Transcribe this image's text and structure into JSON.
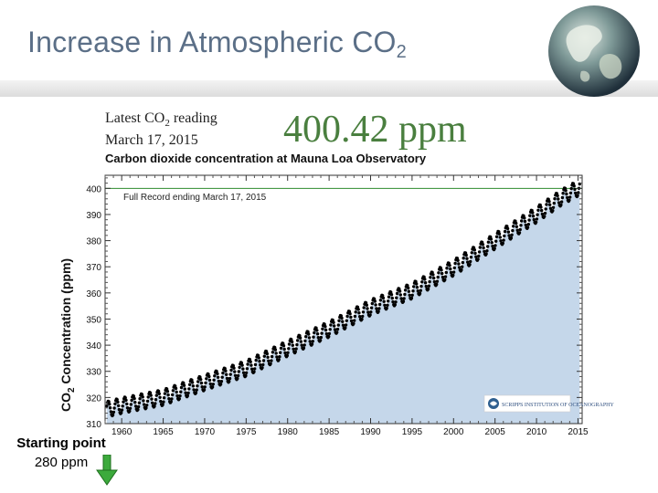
{
  "slide": {
    "title_main": "Increase in Atmospheric CO",
    "title_sub": "2",
    "start_label_line1": "Starting point",
    "start_label_line2": "280 ppm"
  },
  "chart_header": {
    "latest_prefix": "Latest CO",
    "latest_sub": "2",
    "latest_suffix": " reading",
    "date": "March 17, 2015",
    "big_value": "400.42 ppm",
    "title": "Carbon dioxide concentration at Mauna Loa Observatory",
    "record_note": "Full Record ending March 17, 2015",
    "ylabel_main": "CO",
    "ylabel_sub": "2",
    "ylabel_rest": " Concentration (ppm)",
    "logo_text": "SCRIPPS INSTITUTION OF OCEANOGRAPHY"
  },
  "colors": {
    "title": "#5b6f87",
    "big_value": "#4a7f3f",
    "fill": "#c5d7ea",
    "points": "#000000",
    "reference_line": "#2e8b2e",
    "arrow": "#3caa3c"
  },
  "icons": {
    "globe": "globe-icon",
    "arrow": "down-arrow-icon",
    "logo": "scripps-logo-icon"
  },
  "chart_data": {
    "type": "scatter",
    "title": "Carbon dioxide concentration at Mauna Loa Observatory",
    "xlabel": "",
    "ylabel": "CO2 Concentration (ppm)",
    "xlim": [
      1958,
      2015.5
    ],
    "ylim": [
      310,
      405
    ],
    "x_ticks": [
      1960,
      1965,
      1970,
      1975,
      1980,
      1985,
      1990,
      1995,
      2000,
      2005,
      2010,
      2015
    ],
    "y_ticks": [
      310,
      320,
      330,
      340,
      350,
      360,
      370,
      380,
      390,
      400
    ],
    "reference_line_y": 400,
    "grid": false,
    "series": [
      {
        "seasonal_amplitude": 3,
        "years": [
          1958,
          1960,
          1965,
          1970,
          1975,
          1980,
          1985,
          1990,
          1995,
          2000,
          2005,
          2010,
          2013,
          2015.2
        ],
        "values": [
          315.3,
          316.9,
          320.0,
          325.7,
          331.1,
          338.8,
          346.1,
          354.4,
          360.8,
          369.6,
          379.8,
          389.9,
          396.5,
          400.4
        ]
      }
    ]
  }
}
